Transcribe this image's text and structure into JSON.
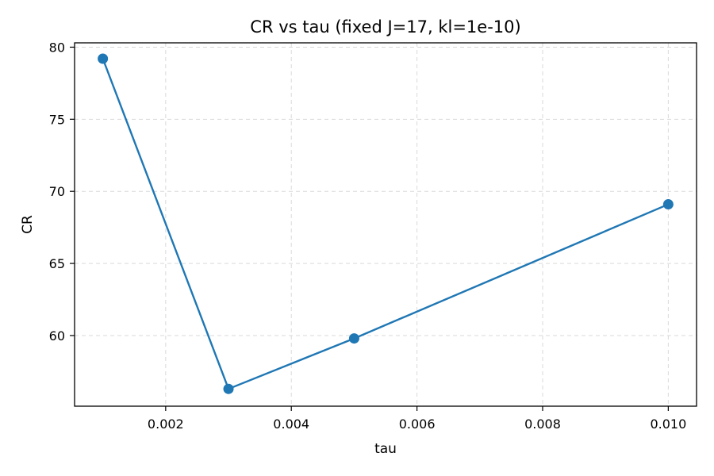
{
  "chart_data": {
    "type": "line",
    "title": "CR vs tau (fixed J=17, kl=1e-10)",
    "xlabel": "tau",
    "ylabel": "CR",
    "xlim": [
      0.00055,
      0.01045
    ],
    "ylim": [
      55.1,
      80.3
    ],
    "xticks": [
      0.002,
      0.004,
      0.006,
      0.008,
      0.01
    ],
    "xtick_labels": [
      "0.002",
      "0.004",
      "0.006",
      "0.008",
      "0.010"
    ],
    "yticks": [
      60,
      65,
      70,
      75,
      80
    ],
    "ytick_labels": [
      "60",
      "65",
      "70",
      "75",
      "80"
    ],
    "grid": true,
    "series": [
      {
        "color": "#1f77b4",
        "marker": "circle",
        "x": [
          0.001,
          0.003,
          0.005,
          0.01
        ],
        "y": [
          79.2,
          56.3,
          59.8,
          69.1
        ]
      }
    ]
  }
}
